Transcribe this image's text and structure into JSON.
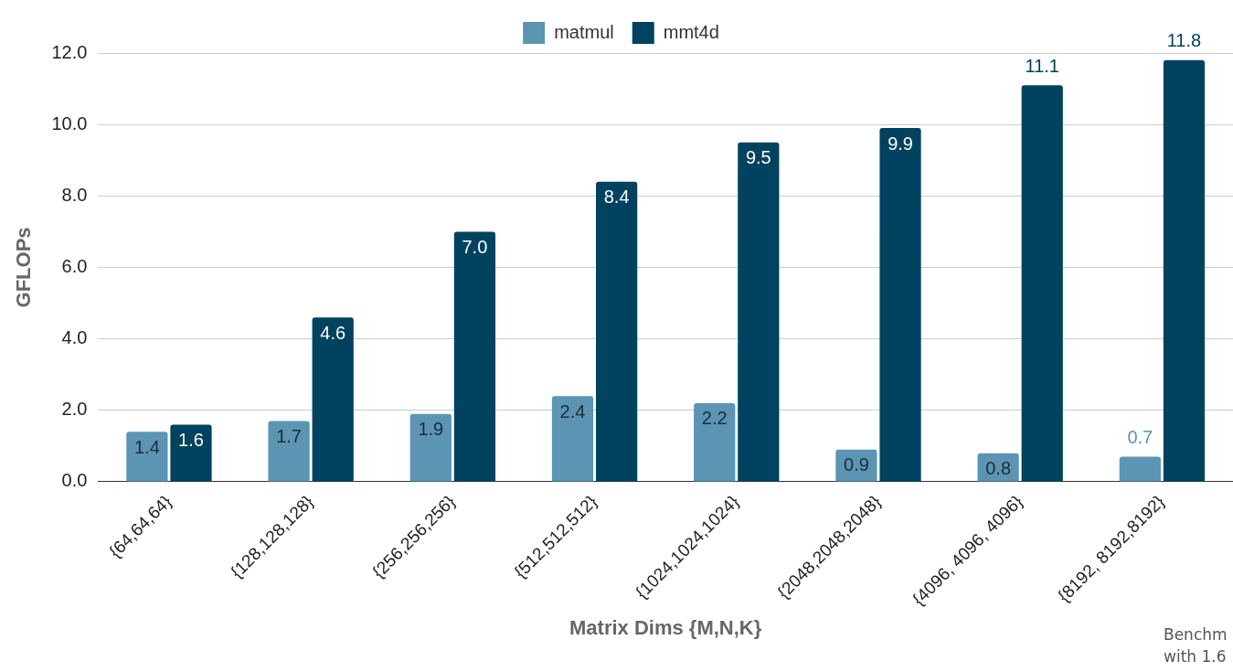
{
  "chart_data": {
    "type": "bar",
    "xlabel": "Matrix Dims {M,N,K}",
    "ylabel": "GFLOPs",
    "categories": [
      "{64,64,64}",
      "{128,128,128}",
      "{256,256,256}",
      "{512,512,512}",
      "{1024,1024,1024}",
      "{2048,2048,2048}",
      "{4096, 4096, 4096}",
      "{8192, 8192,8192}"
    ],
    "series": [
      {
        "name": "matmul",
        "color": "#5b95b3",
        "values": [
          1.4,
          1.7,
          1.9,
          2.4,
          2.2,
          0.9,
          0.8,
          0.7
        ],
        "value_labels": [
          "1.4",
          "1.7",
          "1.9",
          "2.4",
          "2.2",
          "0.9",
          "0.8",
          "0.7"
        ]
      },
      {
        "name": "mmt4d",
        "color": "#00425f",
        "values": [
          1.6,
          4.6,
          7.0,
          8.4,
          9.5,
          9.9,
          11.1,
          11.8
        ],
        "value_labels": [
          "1.6",
          "4.6",
          "7.0",
          "8.4",
          "9.5",
          "9.9",
          "11.1",
          "11.8"
        ]
      }
    ],
    "ylim": [
      0,
      12
    ],
    "yticks": [
      {
        "value": 0,
        "label": "0.0"
      },
      {
        "value": 2,
        "label": "2.0"
      },
      {
        "value": 4,
        "label": "4.0"
      },
      {
        "value": 6,
        "label": "6.0"
      },
      {
        "value": 8,
        "label": "8.0"
      },
      {
        "value": 10,
        "label": "10.0"
      },
      {
        "value": 12,
        "label": "12.0"
      }
    ],
    "grid": "y",
    "legend": "top",
    "annotations": [
      "Benchm",
      "with 1.6"
    ]
  }
}
